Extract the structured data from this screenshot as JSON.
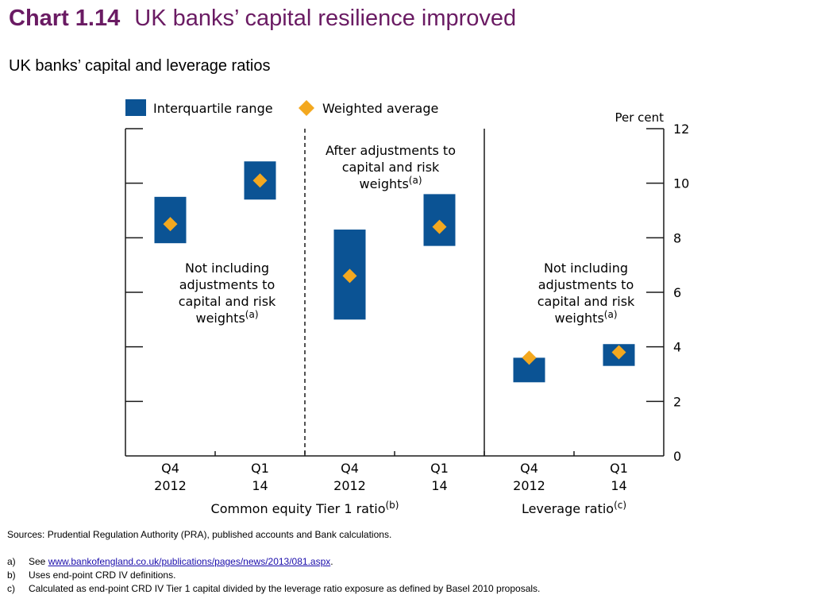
{
  "colors": {
    "accent": "#6a1b63",
    "bar": "#0b5394",
    "diamond": "#f3a81f",
    "axis": "#1a1a1a"
  },
  "title": {
    "number": "Chart 1.14",
    "text": "UK banks’ capital resilience improved"
  },
  "subtitle": "UK banks’ capital and leverage ratios",
  "chart_data": {
    "type": "bar",
    "subtype": "floating range with markers",
    "legend": [
      "Interquartile range",
      "Weighted average"
    ],
    "legend_position": "top-left",
    "y_unit_label": "Per cent",
    "ylim": [
      0,
      12
    ],
    "yticks": [
      0,
      2,
      4,
      6,
      8,
      10,
      12
    ],
    "grid": false,
    "categories": [
      {
        "line1": "Q4",
        "line2": "2012"
      },
      {
        "line1": "Q1",
        "line2": "14"
      },
      {
        "line1": "Q4",
        "line2": "2012"
      },
      {
        "line1": "Q1",
        "line2": "14"
      },
      {
        "line1": "Q4",
        "line2": "2012"
      },
      {
        "line1": "Q1",
        "line2": "14"
      }
    ],
    "series": [
      {
        "name": "Interquartile range",
        "low": [
          7.8,
          9.4,
          5.0,
          7.7,
          2.7,
          3.3
        ],
        "high": [
          9.5,
          10.8,
          8.3,
          9.6,
          3.6,
          4.1
        ]
      },
      {
        "name": "Weighted average",
        "values": [
          8.5,
          10.1,
          6.6,
          8.4,
          3.6,
          3.8
        ]
      }
    ],
    "groups": [
      {
        "label": "Common equity Tier 1 ratio",
        "sup": "(b)"
      },
      {
        "label": "Leverage ratio",
        "sup": "(c)"
      }
    ],
    "annotations": [
      {
        "lines": [
          "Not including",
          "adjustments to",
          "capital and risk",
          "weights"
        ],
        "sup": "(a)"
      },
      {
        "lines": [
          "After adjustments to",
          "capital and risk",
          "weights"
        ],
        "sup": "(a)"
      },
      {
        "lines": [
          "Not including",
          "adjustments to",
          "capital and risk",
          "weights"
        ],
        "sup": "(a)"
      }
    ]
  },
  "notes": {
    "sources": "Sources:  Prudential Regulation Authority (PRA), published accounts and Bank calculations.",
    "items": [
      {
        "label": "a)",
        "pre": "See ",
        "link": "www.bankofengland.co.uk/publications/pages/news/2013/081.aspx",
        "post": "."
      },
      {
        "label": "b)",
        "text": "Uses end-point CRD IV definitions."
      },
      {
        "label": "c)",
        "text": "Calculated as end-point CRD IV Tier 1 capital divided by the leverage ratio exposure as defined by Basel 2010 proposals."
      }
    ]
  }
}
